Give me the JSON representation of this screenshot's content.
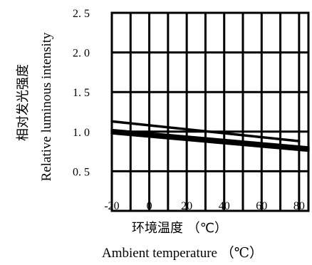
{
  "chart_data": {
    "type": "line",
    "title": "",
    "xlabel_cn": "环境温度 （℃）",
    "xlabel_en": "Ambient temperature （℃）",
    "ylabel_cn": "相对发光强度",
    "ylabel_en": "Relative luminous intensity",
    "xlim": [
      -20,
      85
    ],
    "ylim": [
      0,
      2.5
    ],
    "x_ticks": [
      "-20",
      "0",
      "20",
      "40",
      "60",
      "80"
    ],
    "y_ticks": [
      "0. 5",
      "1. 0",
      "1. 5",
      "2. 0",
      "2. 5"
    ],
    "x_tick_values": [
      -20,
      0,
      20,
      40,
      60,
      80
    ],
    "y_tick_values": [
      0.5,
      1.0,
      1.5,
      2.0,
      2.5
    ],
    "x_grid": [
      -20,
      -10,
      0,
      10,
      20,
      30,
      40,
      50,
      60,
      70,
      80
    ],
    "y_grid": [
      0.5,
      1.0,
      1.5,
      2.0
    ],
    "grid": true,
    "series": [
      {
        "values": [
          [
            -20,
            1.13
          ],
          [
            80,
            0.88
          ]
        ]
      },
      {
        "values": [
          [
            -20,
            1.02
          ],
          [
            85,
            0.8
          ]
        ]
      },
      {
        "values": [
          [
            -20,
            1.0
          ],
          [
            85,
            0.78
          ]
        ]
      },
      {
        "values": [
          [
            -20,
            0.98
          ],
          [
            85,
            0.76
          ]
        ]
      }
    ]
  }
}
